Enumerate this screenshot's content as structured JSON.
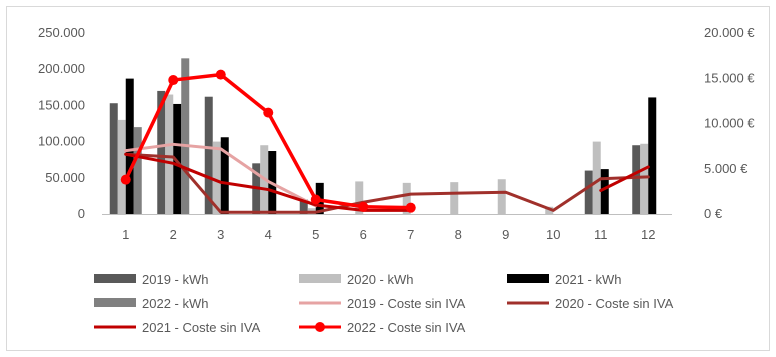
{
  "chart_data": {
    "type": "bar",
    "categories": [
      "1",
      "2",
      "3",
      "4",
      "5",
      "6",
      "7",
      "8",
      "9",
      "10",
      "11",
      "12"
    ],
    "y_left": {
      "ylim": [
        0,
        250000
      ],
      "ticks": [
        "0",
        "50.000",
        "100.000",
        "150.000",
        "200.000",
        "250.000"
      ]
    },
    "y_right": {
      "ylim": [
        0,
        20000
      ],
      "ticks": [
        "0 €",
        "5.000 €",
        "10.000 €",
        "15.000 €",
        "20.000 €"
      ]
    },
    "grid": false,
    "legend_position": "bottom",
    "bar_series": [
      {
        "name": "2019 - kWh",
        "color": "#595959",
        "values": [
          153000,
          170000,
          162000,
          70000,
          20000,
          null,
          null,
          null,
          null,
          null,
          60000,
          95000
        ]
      },
      {
        "name": "2020 - kWh",
        "color": "#bfbfbf",
        "values": [
          130000,
          165000,
          100000,
          95000,
          8000,
          45000,
          43000,
          44000,
          48000,
          10000,
          100000,
          97000
        ]
      },
      {
        "name": "2021 - kWh",
        "color": "#000000",
        "values": [
          187000,
          152000,
          106000,
          87000,
          43000,
          null,
          null,
          null,
          null,
          null,
          62000,
          161000
        ]
      },
      {
        "name": "2022 - kWh",
        "color": "#808080",
        "values": [
          120000,
          215000,
          null,
          null,
          null,
          null,
          null,
          null,
          null,
          null,
          null,
          null
        ]
      }
    ],
    "line_series": [
      {
        "name": "2019 - Coste sin IVA",
        "color": "#e6a3a3",
        "marker": false,
        "values": [
          7000,
          7700,
          7200,
          3600,
          900,
          null,
          null,
          null,
          null,
          null,
          null,
          null
        ]
      },
      {
        "name": "2020 - Coste sin IVA",
        "color": "#a0302b",
        "marker": false,
        "values": [
          6600,
          6300,
          200,
          200,
          200,
          1300,
          2200,
          2300,
          2400,
          400,
          3900,
          4100
        ]
      },
      {
        "name": "2021 - Coste sin IVA",
        "color": "#c00000",
        "marker": false,
        "values": [
          6600,
          5600,
          3500,
          2700,
          1000,
          400,
          400,
          null,
          null,
          null,
          2600,
          5200
        ]
      },
      {
        "name": "2022 - Coste sin IVA",
        "color": "#ff0000",
        "marker": true,
        "values": [
          3800,
          14800,
          15400,
          11200,
          1600,
          800,
          700,
          null,
          null,
          null,
          null,
          null
        ]
      }
    ]
  }
}
